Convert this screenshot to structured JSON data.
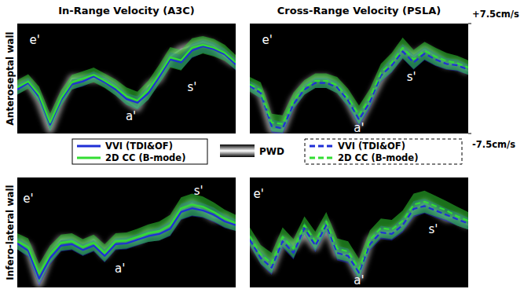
{
  "chart_data": [
    {
      "type": "line",
      "title": "In-Range Velocity (A3C)",
      "ylabel": "Anteroseptal wall",
      "x": [
        0,
        0.05,
        0.1,
        0.15,
        0.2,
        0.25,
        0.3,
        0.35,
        0.4,
        0.45,
        0.5,
        0.55,
        0.6,
        0.65,
        0.7,
        0.75,
        0.8,
        0.85,
        0.9,
        0.95,
        1
      ],
      "xlim": [
        0,
        1
      ],
      "ylim": [
        -7.5,
        7.5
      ],
      "tick_labels": false,
      "legend": "bottom",
      "annotations": [
        {
          "text": "e'",
          "x": 0.08,
          "y": 5.2
        },
        {
          "text": "a'",
          "x": 0.52,
          "y": -5.2
        },
        {
          "text": "s'",
          "x": 0.8,
          "y": -1.2
        }
      ],
      "series": [
        {
          "name": "PWD",
          "type": "spectrum",
          "color": "#ffffff",
          "values": [
            -1,
            -0.5,
            -3,
            -7,
            -3,
            0,
            0,
            0,
            0,
            -1,
            -3,
            -4,
            -1,
            0,
            3,
            4,
            4.5,
            5,
            4.5,
            3,
            2
          ]
        },
        {
          "name": "VVI (TDI&OF)",
          "type": "line",
          "line_style": "solid",
          "color": "#1f2fd6",
          "values": [
            -1.5,
            -0.6,
            -2.5,
            -6.3,
            -3.0,
            -0.8,
            -0.4,
            0.3,
            -0.5,
            -1.5,
            -2.8,
            -3.3,
            -2.0,
            0.2,
            2.6,
            2.2,
            3.8,
            4.4,
            4.0,
            3.3,
            1.9
          ],
          "errors": [
            0.7,
            0.7,
            0.8,
            0.9,
            0.8,
            0.7,
            0.7,
            0.7,
            0.7,
            0.8,
            0.8,
            0.9,
            0.9,
            0.9,
            1.0,
            1.0,
            1.0,
            0.9,
            0.9,
            0.8,
            0.8
          ]
        },
        {
          "name": "2D CC (B-mode)",
          "type": "line",
          "line_style": "solid",
          "color": "#33dd33",
          "values": [
            -1.2,
            -0.4,
            -2.2,
            -6.0,
            -2.7,
            -0.5,
            0.0,
            0.5,
            -0.3,
            -1.2,
            -2.4,
            -3.0,
            -1.6,
            0.6,
            2.9,
            2.5,
            4.2,
            4.6,
            4.2,
            3.5,
            2.2
          ],
          "errors": [
            1.0,
            1.0,
            1.1,
            1.2,
            1.1,
            1.0,
            1.0,
            1.0,
            1.0,
            1.1,
            1.2,
            1.2,
            1.3,
            1.3,
            1.4,
            1.4,
            1.3,
            1.2,
            1.2,
            1.1,
            1.0
          ]
        }
      ]
    },
    {
      "type": "line",
      "title": "Cross-Range Velocity (PSLA)",
      "x": [
        0,
        0.05,
        0.1,
        0.15,
        0.2,
        0.25,
        0.3,
        0.35,
        0.4,
        0.45,
        0.5,
        0.55,
        0.6,
        0.65,
        0.7,
        0.75,
        0.8,
        0.85,
        0.9,
        0.95,
        1
      ],
      "xlim": [
        0,
        1
      ],
      "ylim": [
        -7.5,
        7.5
      ],
      "tick_labels": "y",
      "legend": "bottom",
      "yticks": [
        {
          "value": 7.5,
          "label": "+7.5cm/s"
        },
        {
          "value": -7.5,
          "label": "-7.5cm/s"
        }
      ],
      "annotations": [
        {
          "text": "e'",
          "x": 0.08,
          "y": 5.2
        },
        {
          "text": "a'",
          "x": 0.5,
          "y": -6.8
        },
        {
          "text": "s'",
          "x": 0.74,
          "y": 0.2
        }
      ],
      "series": [
        {
          "type": "spectrum",
          "color": "#ffffff",
          "values": [
            -1,
            -2,
            -7,
            -7,
            -3,
            -1,
            0,
            0,
            -1,
            -3,
            -6,
            -3,
            0,
            2,
            4,
            3,
            4,
            3,
            2,
            2,
            1
          ]
        },
        {
          "name": "VVI (TDI&OF)",
          "type": "line",
          "line_style": "dashed",
          "color": "#1f2fd6",
          "values": [
            -1.0,
            -2.0,
            -6.5,
            -6.8,
            -3.5,
            -1.5,
            -0.6,
            -0.6,
            -1.2,
            -3.0,
            -5.6,
            -3.2,
            0.4,
            1.8,
            3.7,
            2.2,
            3.4,
            2.6,
            2.0,
            1.8,
            1.2
          ],
          "errors": [
            0.7,
            0.8,
            0.9,
            0.9,
            0.8,
            0.7,
            0.7,
            0.7,
            0.8,
            0.9,
            1.0,
            0.9,
            0.9,
            1.0,
            1.0,
            1.0,
            0.9,
            0.9,
            0.8,
            0.8,
            0.7
          ]
        },
        {
          "name": "2D CC (B-mode)",
          "type": "line",
          "line_style": "dashed",
          "color": "#33dd33",
          "values": [
            -0.8,
            -1.6,
            -6.0,
            -6.2,
            -3.0,
            -1.2,
            -0.3,
            -0.3,
            -0.9,
            -2.6,
            -5.0,
            -2.6,
            0.8,
            2.2,
            4.2,
            2.6,
            3.8,
            3.0,
            2.4,
            2.1,
            1.5
          ],
          "errors": [
            1.0,
            1.1,
            1.2,
            1.2,
            1.1,
            1.0,
            1.0,
            1.0,
            1.1,
            1.2,
            1.3,
            1.2,
            1.2,
            1.3,
            1.4,
            1.3,
            1.2,
            1.2,
            1.1,
            1.0,
            1.0
          ]
        }
      ]
    },
    {
      "type": "line",
      "ylabel": "Infero-lateral wall",
      "x": [
        0,
        0.05,
        0.1,
        0.15,
        0.2,
        0.25,
        0.3,
        0.35,
        0.4,
        0.45,
        0.5,
        0.55,
        0.6,
        0.65,
        0.7,
        0.75,
        0.8,
        0.85,
        0.9,
        0.95,
        1
      ],
      "xlim": [
        0,
        1
      ],
      "ylim": [
        -7.5,
        7.5
      ],
      "tick_labels": false,
      "annotations": [
        {
          "text": "e'",
          "x": 0.05,
          "y": 4.6
        },
        {
          "text": "a'",
          "x": 0.47,
          "y": -5.0
        },
        {
          "text": "s'",
          "x": 0.83,
          "y": 5.6
        }
      ],
      "series": [
        {
          "type": "spectrum",
          "color": "#ffffff",
          "values": [
            -1,
            -2,
            -7,
            -3,
            -1,
            -1,
            -2,
            -1,
            -3,
            -1,
            -1,
            -1,
            0,
            0,
            1,
            3,
            4,
            3,
            2,
            2,
            1
          ]
        },
        {
          "type": "line",
          "line_style": "solid",
          "color": "#1f2fd6",
          "values": [
            -1.5,
            -2.5,
            -6.3,
            -3.5,
            -1.8,
            -1.6,
            -2.4,
            -1.8,
            -3.2,
            -1.6,
            -1.5,
            -1.0,
            -0.5,
            -0.2,
            0.5,
            2.8,
            3.3,
            3.0,
            2.4,
            1.5,
            1.0
          ],
          "errors": [
            0.8,
            0.9,
            1.0,
            0.9,
            0.8,
            0.8,
            0.8,
            0.8,
            0.9,
            0.8,
            0.8,
            0.8,
            0.8,
            0.9,
            1.0,
            1.1,
            1.1,
            1.0,
            1.0,
            0.9,
            0.8
          ]
        },
        {
          "type": "line",
          "line_style": "solid",
          "color": "#33dd33",
          "values": [
            -1.2,
            -2.0,
            -5.6,
            -3.0,
            -1.4,
            -1.2,
            -2.0,
            -1.4,
            -2.8,
            -1.2,
            -1.1,
            -0.6,
            -0.1,
            0.2,
            1.0,
            3.3,
            3.8,
            3.5,
            2.8,
            1.9,
            1.3
          ],
          "errors": [
            1.1,
            1.2,
            1.3,
            1.2,
            1.1,
            1.1,
            1.1,
            1.1,
            1.2,
            1.1,
            1.1,
            1.1,
            1.2,
            1.3,
            1.4,
            1.5,
            1.5,
            1.4,
            1.3,
            1.2,
            1.1
          ]
        }
      ]
    },
    {
      "type": "line",
      "x": [
        0,
        0.05,
        0.1,
        0.15,
        0.2,
        0.25,
        0.3,
        0.35,
        0.4,
        0.45,
        0.5,
        0.55,
        0.6,
        0.65,
        0.7,
        0.75,
        0.8,
        0.85,
        0.9,
        0.95,
        1
      ],
      "xlim": [
        0,
        1
      ],
      "ylim": [
        -7.5,
        7.5
      ],
      "tick_labels": false,
      "annotations": [
        {
          "text": "e'",
          "x": 0.04,
          "y": 5.2
        },
        {
          "text": "a'",
          "x": 0.5,
          "y": -6.6
        },
        {
          "text": "s'",
          "x": 0.84,
          "y": 0.4
        }
      ],
      "series": [
        {
          "type": "spectrum",
          "color": "#ffffff",
          "values": [
            -1,
            -3,
            -5,
            -1,
            -2,
            0,
            -2,
            1,
            -3,
            -3,
            -6,
            -1,
            0,
            0,
            1,
            3,
            4,
            3,
            2,
            2,
            1
          ]
        },
        {
          "type": "line",
          "line_style": "dashed",
          "color": "#1f2fd6",
          "values": [
            -1.0,
            -3.5,
            -4.8,
            -1.2,
            -2.8,
            0.6,
            -1.8,
            1.0,
            -2.8,
            -3.2,
            -5.5,
            -1.6,
            0.0,
            -0.2,
            1.0,
            3.2,
            3.6,
            3.0,
            2.4,
            1.8,
            1.2
          ],
          "errors": [
            0.8,
            0.9,
            1.0,
            0.9,
            0.9,
            0.8,
            0.9,
            0.9,
            1.0,
            1.0,
            1.0,
            0.9,
            0.9,
            0.9,
            1.0,
            1.1,
            1.0,
            1.0,
            0.9,
            0.9,
            0.8
          ]
        },
        {
          "type": "line",
          "line_style": "dashed",
          "color": "#33dd33",
          "values": [
            -0.5,
            -3.0,
            -4.2,
            -0.6,
            -2.2,
            1.0,
            -1.2,
            1.5,
            -2.2,
            -2.6,
            -5.0,
            -1.0,
            0.6,
            0.4,
            1.6,
            3.8,
            4.2,
            3.6,
            3.0,
            2.2,
            1.6
          ],
          "errors": [
            1.2,
            1.3,
            1.4,
            1.3,
            1.3,
            1.2,
            1.3,
            1.3,
            1.4,
            1.4,
            1.4,
            1.3,
            1.3,
            1.3,
            1.4,
            1.5,
            1.5,
            1.4,
            1.3,
            1.3,
            1.2
          ]
        }
      ]
    }
  ]
}
